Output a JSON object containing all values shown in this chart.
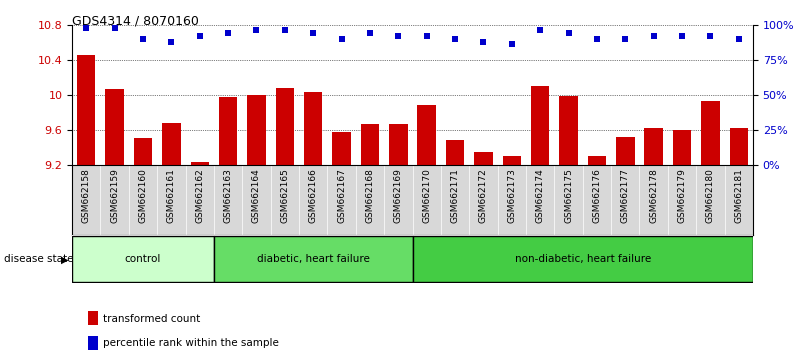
{
  "title": "GDS4314 / 8070160",
  "samples": [
    "GSM662158",
    "GSM662159",
    "GSM662160",
    "GSM662161",
    "GSM662162",
    "GSM662163",
    "GSM662164",
    "GSM662165",
    "GSM662166",
    "GSM662167",
    "GSM662168",
    "GSM662169",
    "GSM662170",
    "GSM662171",
    "GSM662172",
    "GSM662173",
    "GSM662174",
    "GSM662175",
    "GSM662176",
    "GSM662177",
    "GSM662178",
    "GSM662179",
    "GSM662180",
    "GSM662181"
  ],
  "bar_values": [
    10.45,
    10.07,
    9.5,
    9.68,
    9.23,
    9.97,
    10.0,
    10.08,
    10.03,
    9.57,
    9.66,
    9.67,
    9.88,
    9.48,
    9.35,
    9.3,
    10.1,
    9.99,
    9.3,
    9.52,
    9.62,
    9.6,
    9.93,
    9.62
  ],
  "percentile_values": [
    98,
    98,
    90,
    88,
    92,
    94,
    96,
    96,
    94,
    90,
    94,
    92,
    92,
    90,
    88,
    86,
    96,
    94,
    90,
    90,
    92,
    92,
    92,
    90
  ],
  "bar_color": "#cc0000",
  "percentile_color": "#0000cc",
  "ylim_left": [
    9.2,
    10.8
  ],
  "ylim_right": [
    0,
    100
  ],
  "yticks_left": [
    9.2,
    9.6,
    10.0,
    10.4,
    10.8
  ],
  "ytick_labels_left": [
    "9.2",
    "9.6",
    "10",
    "10.4",
    "10.8"
  ],
  "yticks_right": [
    0,
    25,
    50,
    75,
    100
  ],
  "ytick_labels_right": [
    "0%",
    "25%",
    "50%",
    "75%",
    "100%"
  ],
  "group_colors": [
    "#ccffcc",
    "#66dd66",
    "#44cc44"
  ],
  "group_labels": [
    "control",
    "diabetic, heart failure",
    "non-diabetic, heart failure"
  ],
  "group_starts": [
    0,
    5,
    12
  ],
  "group_ends": [
    4,
    11,
    23
  ],
  "disease_state_label": "disease state",
  "legend_bar_label": "transformed count",
  "legend_dot_label": "percentile rank within the sample",
  "ylabel_left_color": "#cc0000",
  "ylabel_right_color": "#0000cc"
}
